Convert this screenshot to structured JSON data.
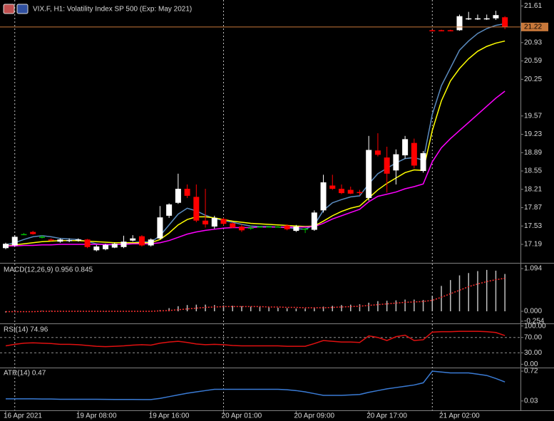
{
  "chart_data": [
    {
      "type": "candlestick",
      "title": "VIX.F, H1:  Volatility Index SP 500 (Exp: May 2021)",
      "ylim": [
        16.86,
        21.72
      ],
      "yticks": [
        17.19,
        17.53,
        17.87,
        18.21,
        18.55,
        18.89,
        19.23,
        19.57,
        20.25,
        20.59,
        20.93,
        21.61
      ],
      "up_color": "#ffffff",
      "down_color": "#ff0000",
      "doji_color": "#00c000",
      "last_price_color": "#c8783a",
      "day_separators": [
        1,
        24,
        47
      ],
      "open": [
        17.12,
        17.17,
        17.38,
        17.42,
        17.33,
        17.28,
        17.24,
        17.25,
        17.26,
        17.28,
        17.08,
        17.1,
        17.13,
        17.14,
        17.26,
        17.34,
        17.17,
        17.3,
        17.72,
        17.96,
        18.22,
        18.07,
        17.63,
        17.52,
        17.66,
        17.58,
        17.52,
        17.5,
        17.52,
        17.52,
        17.52,
        17.54,
        17.44,
        17.48,
        17.46,
        17.82,
        18.28,
        18.22,
        18.2,
        18.16,
        18.05,
        18.93,
        18.8,
        18.56,
        18.84,
        19.07,
        18.55,
        21.16,
        21.16,
        21.16,
        21.16,
        21.37,
        21.37,
        21.37,
        21.38,
        21.4
      ],
      "high": [
        17.22,
        17.36,
        17.4,
        17.44,
        17.36,
        17.3,
        17.3,
        17.3,
        17.3,
        17.29,
        17.18,
        17.2,
        17.22,
        17.35,
        17.36,
        17.36,
        17.3,
        17.9,
        17.95,
        18.5,
        18.3,
        18.3,
        18.22,
        17.72,
        17.68,
        17.6,
        17.56,
        17.54,
        17.53,
        17.53,
        17.53,
        17.56,
        17.55,
        17.5,
        17.82,
        18.48,
        18.48,
        18.3,
        18.26,
        18.2,
        19.2,
        19.25,
        19.0,
        18.95,
        19.2,
        19.15,
        18.92,
        21.17,
        21.17,
        21.17,
        21.45,
        21.5,
        21.45,
        21.45,
        21.52,
        21.42
      ],
      "low": [
        17.1,
        17.15,
        17.36,
        17.37,
        17.3,
        17.25,
        17.22,
        17.23,
        17.24,
        17.12,
        17.06,
        17.08,
        17.12,
        17.12,
        17.24,
        17.15,
        17.15,
        17.28,
        17.68,
        17.94,
        18.05,
        17.6,
        17.5,
        17.48,
        17.54,
        17.49,
        17.42,
        17.46,
        17.5,
        17.5,
        17.5,
        17.45,
        17.42,
        17.4,
        17.44,
        17.78,
        18.2,
        18.12,
        18.12,
        18.1,
        18.0,
        18.82,
        18.15,
        18.3,
        18.78,
        18.6,
        18.52,
        21.14,
        21.14,
        21.14,
        21.15,
        21.35,
        21.35,
        21.35,
        21.35,
        21.18
      ],
      "close": [
        17.2,
        17.33,
        17.38,
        17.38,
        17.33,
        17.27,
        17.28,
        17.27,
        17.28,
        17.14,
        17.15,
        17.18,
        17.2,
        17.24,
        17.3,
        17.17,
        17.28,
        17.69,
        17.93,
        18.22,
        18.09,
        17.63,
        17.56,
        17.68,
        17.57,
        17.5,
        17.45,
        17.5,
        17.52,
        17.52,
        17.52,
        17.47,
        17.52,
        17.48,
        17.78,
        18.34,
        18.22,
        18.14,
        18.13,
        18.15,
        18.94,
        18.85,
        18.5,
        18.86,
        19.14,
        18.65,
        18.88,
        21.15,
        21.15,
        21.15,
        21.42,
        21.38,
        21.38,
        21.38,
        21.44,
        21.22
      ],
      "series": [
        {
          "color": "#5b8cc0",
          "values": [
            17.18,
            17.22,
            17.28,
            17.33,
            17.35,
            17.33,
            17.3,
            17.29,
            17.28,
            17.24,
            17.2,
            17.18,
            17.18,
            17.2,
            17.22,
            17.24,
            17.23,
            17.35,
            17.55,
            17.75,
            17.86,
            17.81,
            17.73,
            17.67,
            17.63,
            17.6,
            17.56,
            17.53,
            17.52,
            17.52,
            17.51,
            17.5,
            17.48,
            17.47,
            17.55,
            17.82,
            17.96,
            18.02,
            18.07,
            18.09,
            18.31,
            18.5,
            18.6,
            18.7,
            18.78,
            18.8,
            18.75,
            19.6,
            20.13,
            20.46,
            20.79,
            20.96,
            21.1,
            21.19,
            21.25,
            21.28
          ]
        },
        {
          "color": "#ffff00",
          "values": [
            17.16,
            17.18,
            17.2,
            17.22,
            17.24,
            17.25,
            17.26,
            17.26,
            17.26,
            17.25,
            17.24,
            17.23,
            17.22,
            17.22,
            17.22,
            17.22,
            17.22,
            17.28,
            17.4,
            17.55,
            17.65,
            17.7,
            17.7,
            17.68,
            17.65,
            17.62,
            17.6,
            17.58,
            17.57,
            17.56,
            17.55,
            17.54,
            17.53,
            17.52,
            17.53,
            17.62,
            17.72,
            17.8,
            17.86,
            17.9,
            18.05,
            18.2,
            18.32,
            18.42,
            18.52,
            18.57,
            18.56,
            19.3,
            19.85,
            20.22,
            20.45,
            20.63,
            20.77,
            20.86,
            20.92,
            20.96
          ]
        },
        {
          "color": "#ff00ff",
          "values": [
            17.16,
            17.16,
            17.17,
            17.17,
            17.18,
            17.18,
            17.19,
            17.19,
            17.19,
            17.19,
            17.19,
            17.19,
            17.19,
            17.19,
            17.2,
            17.2,
            17.2,
            17.22,
            17.26,
            17.32,
            17.38,
            17.42,
            17.45,
            17.47,
            17.49,
            17.5,
            17.5,
            17.5,
            17.51,
            17.51,
            17.51,
            17.51,
            17.51,
            17.51,
            17.52,
            17.58,
            17.66,
            17.72,
            17.78,
            17.84,
            17.98,
            18.08,
            18.12,
            18.16,
            18.22,
            18.26,
            18.31,
            18.72,
            18.98,
            19.15,
            19.3,
            19.45,
            19.6,
            19.75,
            19.9,
            20.03
          ]
        }
      ]
    },
    {
      "type": "macd",
      "title": "MACD(12,26,9) 0.956 0.845",
      "ylim": [
        -0.274,
        1.204
      ],
      "yticks": [
        1.094,
        {
          "value": 0,
          "label": "0.000"
        },
        -0.254
      ],
      "series": [
        {
          "style": "histogram",
          "color": "#c0c0c0",
          "values": [
            -0.03,
            -0.02,
            -0.01,
            0,
            0.01,
            0.01,
            0.01,
            0.01,
            0.01,
            0,
            0,
            -0.01,
            -0.01,
            0,
            0,
            0,
            0,
            0.03,
            0.08,
            0.13,
            0.16,
            0.17,
            0.17,
            0.16,
            0.15,
            0.14,
            0.13,
            0.12,
            0.11,
            0.1,
            0.09,
            0.08,
            0.07,
            0.07,
            0.08,
            0.12,
            0.14,
            0.16,
            0.17,
            0.18,
            0.22,
            0.26,
            0.27,
            0.28,
            0.3,
            0.3,
            0.29,
            0.4,
            0.65,
            0.8,
            0.92,
            0.98,
            1.03,
            1.06,
            1.04,
            0.956
          ]
        },
        {
          "style": "dotted",
          "color": "#ff3030",
          "values": [
            -0.01,
            -0.01,
            -0.01,
            -0.01,
            0,
            0,
            0,
            0,
            0,
            0,
            0,
            0,
            0,
            0,
            0,
            0,
            0,
            0.01,
            0.02,
            0.04,
            0.06,
            0.08,
            0.1,
            0.11,
            0.12,
            0.12,
            0.12,
            0.12,
            0.12,
            0.11,
            0.11,
            0.1,
            0.1,
            0.09,
            0.09,
            0.09,
            0.1,
            0.11,
            0.12,
            0.13,
            0.15,
            0.17,
            0.19,
            0.21,
            0.23,
            0.24,
            0.25,
            0.28,
            0.36,
            0.45,
            0.54,
            0.63,
            0.7,
            0.76,
            0.81,
            0.845
          ]
        }
      ]
    },
    {
      "type": "line",
      "title": "RSI(14) 74.96",
      "ylim": [
        -5,
        103
      ],
      "yticks": [
        {
          "value": 100,
          "label": "100.00"
        },
        {
          "value": 70,
          "label": "70.00"
        },
        {
          "value": 30,
          "label": "30.00"
        },
        {
          "value": 0,
          "label": "0.00"
        }
      ],
      "levels": [
        70,
        30
      ],
      "series": [
        {
          "color": "#e01010",
          "values": [
            48,
            52,
            55,
            56,
            55,
            54,
            52,
            52,
            51,
            49,
            47,
            46,
            47,
            48,
            50,
            51,
            50,
            55,
            58,
            60,
            57,
            53,
            51,
            52,
            51,
            49,
            48,
            48,
            48,
            48,
            48,
            47,
            47,
            47,
            54,
            62,
            60,
            58,
            58,
            57,
            74,
            70,
            62,
            72,
            76,
            62,
            64,
            84,
            85,
            85,
            86,
            86,
            86,
            85,
            83,
            74.96
          ]
        }
      ]
    },
    {
      "type": "line",
      "title": "ATR(14) 0.47",
      "ylim": [
        -0.17,
        0.77
      ],
      "yticks": [
        0.72,
        0.03
      ],
      "xticks": [
        {
          "value": 0,
          "label": "16 Apr 2021"
        },
        {
          "value": 8,
          "label": "19 Apr 08:00"
        },
        {
          "value": 16,
          "label": "19 Apr 16:00"
        },
        {
          "value": 24,
          "label": "20 Apr 01:00"
        },
        {
          "value": 32,
          "label": "20 Apr 09:00"
        },
        {
          "value": 40,
          "label": "20 Apr 17:00"
        },
        {
          "value": 48,
          "label": "21 Apr 02:00"
        }
      ],
      "series": [
        {
          "color": "#3a7bd5",
          "values": [
            0.08,
            0.08,
            0.08,
            0.08,
            0.075,
            0.075,
            0.07,
            0.07,
            0.07,
            0.07,
            0.07,
            0.068,
            0.066,
            0.065,
            0.065,
            0.063,
            0.062,
            0.09,
            0.13,
            0.17,
            0.21,
            0.24,
            0.27,
            0.3,
            0.3,
            0.3,
            0.3,
            0.3,
            0.3,
            0.3,
            0.3,
            0.29,
            0.27,
            0.24,
            0.2,
            0.16,
            0.16,
            0.16,
            0.17,
            0.18,
            0.23,
            0.27,
            0.31,
            0.34,
            0.37,
            0.4,
            0.45,
            0.72,
            0.7,
            0.68,
            0.68,
            0.68,
            0.65,
            0.62,
            0.55,
            0.47
          ]
        }
      ]
    }
  ]
}
